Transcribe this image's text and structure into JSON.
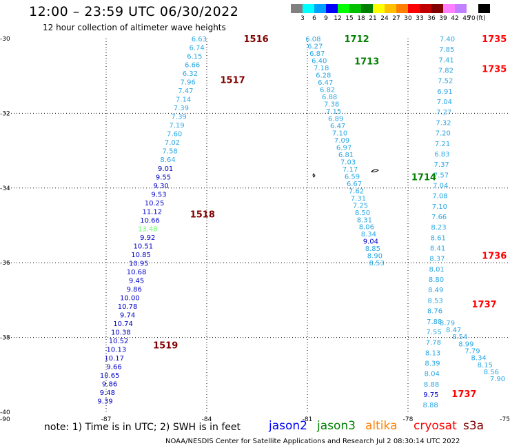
{
  "header": {
    "title": "12:00 – 23:59 UTC 06/30/2022",
    "subtitle": "12 hour collection of altimeter wave heights"
  },
  "scale": {
    "colors": [
      "#808080",
      "#00ffff",
      "#00a0ff",
      "#0000ff",
      "#00ff00",
      "#00c000",
      "#008000",
      "#ffff00",
      "#ffc000",
      "#ff8000",
      "#ff0000",
      "#c00000",
      "#800000",
      "#ff80ff",
      "#c080ff",
      "#ffffff",
      "#000000"
    ],
    "labels": [
      "3",
      "6",
      "9",
      "12",
      "15",
      "18",
      "21",
      "24",
      "27",
      "30",
      "33",
      "36",
      "39",
      "42",
      "45",
      "70"
    ],
    "unit": "(ft)"
  },
  "axes": {
    "lat_labels": [
      "-30",
      "-32",
      "-34",
      "-36",
      "-38",
      "-40"
    ],
    "lon_labels": [
      "-90",
      "-87",
      "-84",
      "-81",
      "-78",
      "-75"
    ]
  },
  "footer": {
    "note": "note: 1) Time is in UTC; 2) SWH is in feet",
    "missions": [
      {
        "name": "jason2",
        "color": "#0000ff"
      },
      {
        "name": "jason3",
        "color": "#008000"
      },
      {
        "name": "altika",
        "color": "#ff8000"
      },
      {
        "name": "cryosat",
        "color": "#ff0000"
      },
      {
        "name": "s3a",
        "color": "#800000"
      }
    ],
    "credit": "NOAA/NESDIS Center for Satellite Applications and Research    Jul  2 08:30:14 UTC 2022"
  },
  "chart_data": {
    "type": "map",
    "lat_range": [
      -40,
      -30
    ],
    "lon_range": [
      -90,
      -75
    ],
    "grid": true,
    "value_colors": {
      "light": "#29a7e3",
      "dark": "#0000c8",
      "green": "#66ff66"
    },
    "time_colors": {
      "s3a": "#800000",
      "jason3": "#008000",
      "cryosat": "#ff0000"
    },
    "tracks": [
      {
        "name": "track-1516-1519",
        "values": [
          "6.63",
          "6.74",
          "6.15",
          "6.66",
          "6.32",
          "7.96",
          "7.47",
          "7.14",
          "7.39",
          "7.39",
          "7.19",
          "7.60",
          "7.02",
          "7.58",
          "8.64",
          "9.01",
          "9.55",
          "9.30",
          "9.53",
          "10.25",
          "11.12",
          "10.66",
          "13.48",
          "9.92",
          "10.51",
          "10.85",
          "10.95",
          "10.68",
          "9.45",
          "9.86",
          "10.00",
          "10.78",
          "9.74",
          "10.74",
          "10.38",
          "10.52",
          "10.13",
          "10.17",
          "9.66",
          "10.65",
          "9.86",
          "9.48",
          "9.39"
        ],
        "start": [
          -84.0,
          -30.0
        ],
        "end": [
          -86.8,
          -39.7
        ]
      },
      {
        "name": "track-1712-1713",
        "values": [
          "6.08",
          "6.27",
          "6.87",
          "6.40",
          "7.18",
          "6.28",
          "6.47",
          "6.82",
          "6.88",
          "7.38",
          "7.15",
          "6.89",
          "6.47",
          "7.10",
          "7.09",
          "6.97",
          "6.81",
          "7.03",
          "7.17",
          "6.59",
          "6.67",
          "7.62",
          "7.31",
          "7.25",
          "8.50",
          "8.31",
          "8.06",
          "8.34",
          "9.04",
          "8.85",
          "8.90",
          "8.53"
        ],
        "start": [
          -80.6,
          -30.0
        ],
        "end": [
          -78.7,
          -36.0
        ]
      },
      {
        "name": "track-1735-1737",
        "values": [
          "7.40",
          "7.85",
          "7.41",
          "7.82",
          "7.52",
          "6.91",
          "7.04",
          "7.27",
          "7.32",
          "7.20",
          "7.21",
          "6.83",
          "7.37",
          "7.57",
          "7.04",
          "7.08",
          "7.10",
          "7.66",
          "8.23",
          "8.61",
          "8.41",
          "8.37",
          "8.01",
          "8.80",
          "8.49",
          "8.53",
          "8.76",
          "7.88",
          "7.55",
          "7.78",
          "8.13",
          "8.39",
          "8.04",
          "8.88",
          "9.75",
          "8.88"
        ],
        "start": [
          -76.6,
          -30.0
        ],
        "end": [
          -77.1,
          -39.8
        ]
      },
      {
        "name": "track-1736-lower",
        "values": [
          "8.79",
          "8.47",
          "8.54",
          "8.99",
          "7.79",
          "8.34",
          "8.15",
          "8.56",
          "7.90"
        ],
        "start": [
          -76.6,
          -37.6
        ],
        "end": [
          -75.1,
          -39.1
        ]
      }
    ],
    "time_labels": [
      {
        "text": "1516",
        "mission": "s3a",
        "lon": -82.9,
        "lat": -30.0
      },
      {
        "text": "1517",
        "mission": "s3a",
        "lon": -83.6,
        "lat": -31.1
      },
      {
        "text": "1518",
        "mission": "s3a",
        "lon": -84.5,
        "lat": -34.7
      },
      {
        "text": "1519",
        "mission": "s3a",
        "lon": -85.6,
        "lat": -38.2
      },
      {
        "text": "1712",
        "mission": "jason3",
        "lon": -79.9,
        "lat": -30.0
      },
      {
        "text": "1713",
        "mission": "jason3",
        "lon": -79.6,
        "lat": -30.6
      },
      {
        "text": "1714",
        "mission": "jason3",
        "lon": -77.9,
        "lat": -33.7
      },
      {
        "text": "1735",
        "mission": "cryosat",
        "lon": -75.8,
        "lat": -30.0
      },
      {
        "text": "1735",
        "mission": "cryosat",
        "lon": -75.8,
        "lat": -30.8
      },
      {
        "text": "1736",
        "mission": "cryosat",
        "lon": -75.8,
        "lat": -35.8
      },
      {
        "text": "1737",
        "mission": "cryosat",
        "lon": -76.1,
        "lat": -37.1
      },
      {
        "text": "1737",
        "mission": "cryosat",
        "lon": -76.7,
        "lat": -39.5
      }
    ]
  }
}
